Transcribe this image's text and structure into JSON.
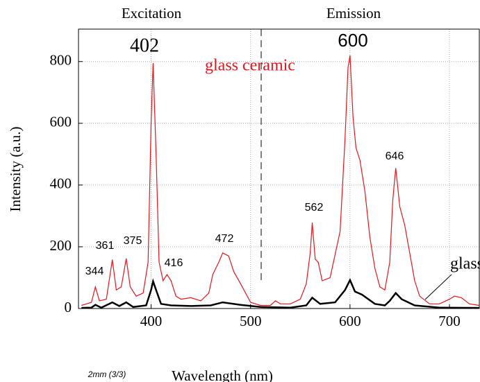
{
  "chart_data": {
    "type": "line",
    "x_label": "Wavelength (nm)",
    "y_label": "Intensity (a.u.)",
    "xlim": [
      327,
      730
    ],
    "ylim": [
      0,
      905
    ],
    "xticks": [
      400,
      500,
      600,
      700
    ],
    "yticks": [
      0,
      200,
      400,
      600,
      800
    ],
    "grid": true,
    "annotations": [
      "Excitation",
      "Emission",
      "402",
      "600",
      "344",
      "361",
      "375",
      "416",
      "472",
      "562",
      "646",
      "2mm (3/3)"
    ],
    "series": [
      {
        "name": "glass ceramic",
        "color": "#e8141c",
        "x": [
          330,
          340,
          344,
          348,
          355,
          361,
          365,
          370,
          375,
          379,
          385,
          392,
          397,
          400,
          402,
          405,
          408,
          412,
          416,
          420,
          425,
          430,
          440,
          450,
          458,
          462,
          468,
          472,
          478,
          483,
          490,
          495,
          500,
          510,
          520,
          525,
          530,
          540,
          550,
          556,
          560,
          562,
          565,
          568,
          572,
          580,
          590,
          595,
          598,
          600,
          603,
          606,
          610,
          615,
          620,
          625,
          630,
          635,
          640,
          643,
          646,
          650,
          655,
          660,
          665,
          670,
          680,
          690,
          700,
          705,
          712,
          720,
          730
        ],
        "values": [
          10,
          20,
          70,
          25,
          30,
          158,
          60,
          70,
          162,
          70,
          40,
          50,
          150,
          600,
          795,
          500,
          150,
          90,
          110,
          90,
          40,
          30,
          35,
          25,
          50,
          110,
          150,
          180,
          170,
          120,
          80,
          50,
          20,
          10,
          10,
          25,
          15,
          15,
          30,
          80,
          180,
          278,
          160,
          150,
          90,
          100,
          250,
          550,
          780,
          820,
          620,
          520,
          480,
          380,
          230,
          130,
          70,
          60,
          150,
          350,
          455,
          330,
          270,
          180,
          90,
          40,
          15,
          15,
          30,
          40,
          35,
          15,
          10
        ]
      },
      {
        "name": "glass",
        "color": "#000000",
        "x": [
          330,
          340,
          344,
          350,
          361,
          368,
          375,
          382,
          395,
          400,
          402,
          405,
          410,
          420,
          440,
          460,
          472,
          490,
          510,
          540,
          556,
          562,
          570,
          585,
          595,
          600,
          605,
          612,
          625,
          635,
          640,
          646,
          652,
          665,
          690,
          730
        ],
        "values": [
          2,
          3,
          12,
          3,
          20,
          8,
          20,
          5,
          10,
          60,
          88,
          60,
          15,
          10,
          8,
          10,
          20,
          12,
          5,
          3,
          10,
          35,
          15,
          20,
          60,
          92,
          55,
          45,
          15,
          10,
          25,
          50,
          30,
          10,
          3,
          2
        ]
      }
    ]
  }
}
